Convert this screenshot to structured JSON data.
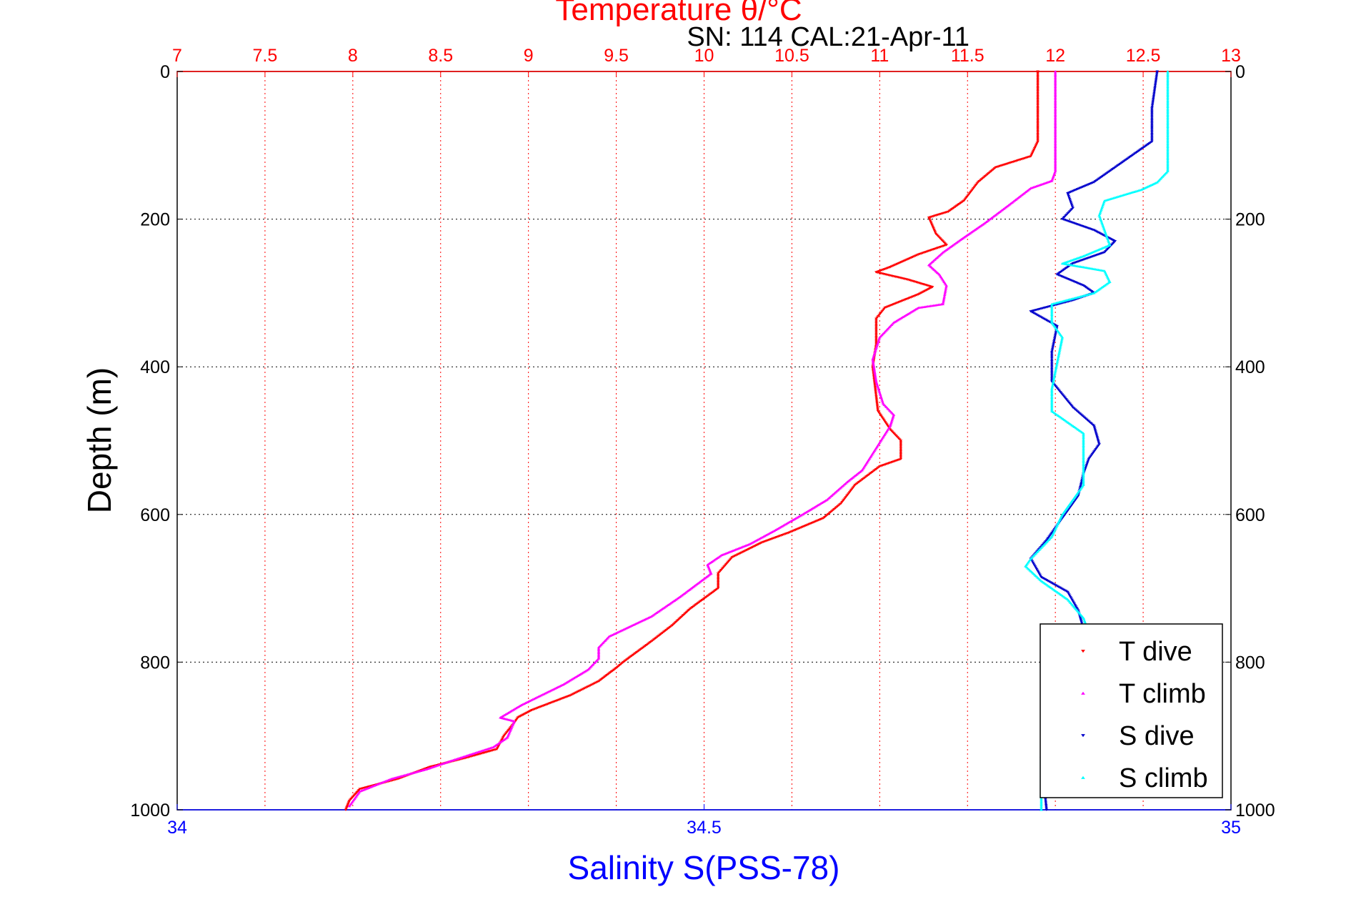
{
  "chart_data": {
    "type": "scatter",
    "title": "Temperature θ/°C",
    "subtitle": "SN: 114  CAL:21-Apr-11",
    "xlabel_top": "Temperature θ/°C",
    "xlabel_bottom": "Salinity S(PSS-78)",
    "ylabel": "Depth (m)",
    "temperature_axis": {
      "lim": [
        7,
        13
      ],
      "ticks": [
        "7",
        "7.5",
        "8",
        "8.5",
        "9",
        "9.5",
        "10",
        "10.5",
        "11",
        "11.5",
        "12",
        "12.5",
        "13"
      ]
    },
    "salinity_axis": {
      "lim": [
        34,
        35
      ],
      "ticks": [
        "34",
        "34.5",
        "35"
      ]
    },
    "depth_axis": {
      "lim": [
        0,
        1000
      ],
      "reversed": true,
      "ticks": [
        "0",
        "200",
        "400",
        "600",
        "800",
        "1000"
      ]
    },
    "grid": true,
    "legend_position": "bottom-right",
    "series": [
      {
        "name": "T dive",
        "axis": "temperature",
        "color": "#ff0000",
        "marker": "down-triangle",
        "points": [
          [
            11.9,
            0
          ],
          [
            11.9,
            50
          ],
          [
            11.9,
            95
          ],
          [
            11.86,
            115
          ],
          [
            11.66,
            130
          ],
          [
            11.56,
            150
          ],
          [
            11.48,
            175
          ],
          [
            11.39,
            190
          ],
          [
            11.28,
            198
          ],
          [
            11.32,
            220
          ],
          [
            11.38,
            235
          ],
          [
            11.22,
            248
          ],
          [
            11.06,
            265
          ],
          [
            10.98,
            272
          ],
          [
            11.16,
            282
          ],
          [
            11.3,
            292
          ],
          [
            11.22,
            302
          ],
          [
            11.03,
            320
          ],
          [
            10.98,
            335
          ],
          [
            10.98,
            370
          ],
          [
            10.96,
            400
          ],
          [
            10.98,
            440
          ],
          [
            10.99,
            460
          ],
          [
            11.06,
            485
          ],
          [
            11.12,
            500
          ],
          [
            11.12,
            525
          ],
          [
            11.0,
            535
          ],
          [
            10.86,
            560
          ],
          [
            10.78,
            585
          ],
          [
            10.68,
            605
          ],
          [
            10.48,
            625
          ],
          [
            10.33,
            638
          ],
          [
            10.16,
            658
          ],
          [
            10.08,
            680
          ],
          [
            10.08,
            700
          ],
          [
            9.92,
            728
          ],
          [
            9.82,
            750
          ],
          [
            9.7,
            772
          ],
          [
            9.54,
            800
          ],
          [
            9.5,
            808
          ],
          [
            9.4,
            826
          ],
          [
            9.24,
            845
          ],
          [
            9.02,
            865
          ],
          [
            8.94,
            875
          ],
          [
            8.92,
            882
          ],
          [
            8.86,
            900
          ],
          [
            8.82,
            918
          ],
          [
            8.64,
            930
          ],
          [
            8.44,
            942
          ],
          [
            8.26,
            958
          ],
          [
            8.04,
            972
          ],
          [
            7.98,
            988
          ],
          [
            7.96,
            1000
          ]
        ]
      },
      {
        "name": "T climb",
        "axis": "temperature",
        "color": "#ff00ff",
        "marker": "up-triangle",
        "points": [
          [
            12.0,
            0
          ],
          [
            12.0,
            50
          ],
          [
            12.0,
            100
          ],
          [
            12.0,
            135
          ],
          [
            11.98,
            148
          ],
          [
            11.86,
            158
          ],
          [
            11.74,
            180
          ],
          [
            11.6,
            205
          ],
          [
            11.46,
            228
          ],
          [
            11.36,
            245
          ],
          [
            11.28,
            262
          ],
          [
            11.34,
            275
          ],
          [
            11.38,
            290
          ],
          [
            11.36,
            315
          ],
          [
            11.22,
            320
          ],
          [
            11.08,
            340
          ],
          [
            11.0,
            360
          ],
          [
            10.96,
            390
          ],
          [
            10.98,
            420
          ],
          [
            11.02,
            450
          ],
          [
            11.08,
            465
          ],
          [
            11.06,
            480
          ],
          [
            10.98,
            510
          ],
          [
            10.9,
            540
          ],
          [
            10.82,
            555
          ],
          [
            10.7,
            580
          ],
          [
            10.56,
            600
          ],
          [
            10.4,
            622
          ],
          [
            10.26,
            640
          ],
          [
            10.1,
            655
          ],
          [
            10.02,
            668
          ],
          [
            10.04,
            680
          ],
          [
            9.86,
            712
          ],
          [
            9.7,
            738
          ],
          [
            9.46,
            765
          ],
          [
            9.4,
            780
          ],
          [
            9.4,
            795
          ],
          [
            9.34,
            810
          ],
          [
            9.2,
            830
          ],
          [
            8.96,
            858
          ],
          [
            8.84,
            875
          ],
          [
            8.92,
            880
          ],
          [
            8.88,
            902
          ],
          [
            8.8,
            915
          ],
          [
            8.58,
            932
          ],
          [
            8.42,
            945
          ],
          [
            8.22,
            958
          ],
          [
            8.04,
            975
          ],
          [
            7.98,
            995
          ]
        ]
      },
      {
        "name": "S dive",
        "axis": "salinity",
        "color": "#0000cc",
        "marker": "down-triangle",
        "points": [
          [
            34.93,
            0
          ],
          [
            34.925,
            50
          ],
          [
            34.925,
            95
          ],
          [
            34.91,
            110
          ],
          [
            34.89,
            130
          ],
          [
            34.87,
            150
          ],
          [
            34.845,
            165
          ],
          [
            34.85,
            185
          ],
          [
            34.84,
            200
          ],
          [
            34.87,
            215
          ],
          [
            34.89,
            230
          ],
          [
            34.88,
            245
          ],
          [
            34.85,
            260
          ],
          [
            34.835,
            275
          ],
          [
            34.86,
            290
          ],
          [
            34.87,
            300
          ],
          [
            34.85,
            310
          ],
          [
            34.81,
            325
          ],
          [
            34.835,
            345
          ],
          [
            34.83,
            380
          ],
          [
            34.83,
            420
          ],
          [
            34.85,
            455
          ],
          [
            34.87,
            480
          ],
          [
            34.875,
            505
          ],
          [
            34.865,
            525
          ],
          [
            34.86,
            545
          ],
          [
            34.855,
            575
          ],
          [
            34.84,
            605
          ],
          [
            34.825,
            635
          ],
          [
            34.81,
            660
          ],
          [
            34.82,
            685
          ],
          [
            34.845,
            705
          ],
          [
            34.855,
            730
          ],
          [
            34.86,
            755
          ],
          [
            34.85,
            800
          ],
          [
            34.83,
            870
          ],
          [
            34.82,
            930
          ],
          [
            34.825,
            1000
          ]
        ]
      },
      {
        "name": "S climb",
        "axis": "salinity",
        "color": "#00ffff",
        "marker": "up-triangle",
        "points": [
          [
            34.94,
            0
          ],
          [
            34.94,
            50
          ],
          [
            34.94,
            100
          ],
          [
            34.94,
            135
          ],
          [
            34.93,
            150
          ],
          [
            34.915,
            160
          ],
          [
            34.88,
            175
          ],
          [
            34.875,
            195
          ],
          [
            34.88,
            215
          ],
          [
            34.885,
            235
          ],
          [
            34.86,
            250
          ],
          [
            34.84,
            260
          ],
          [
            34.88,
            270
          ],
          [
            34.885,
            285
          ],
          [
            34.87,
            300
          ],
          [
            34.83,
            315
          ],
          [
            34.83,
            340
          ],
          [
            34.84,
            360
          ],
          [
            34.835,
            395
          ],
          [
            34.83,
            430
          ],
          [
            34.83,
            460
          ],
          [
            34.86,
            490
          ],
          [
            34.86,
            515
          ],
          [
            34.86,
            535
          ],
          [
            34.86,
            560
          ],
          [
            34.84,
            600
          ],
          [
            34.83,
            630
          ],
          [
            34.81,
            660
          ],
          [
            34.805,
            670
          ],
          [
            34.82,
            690
          ],
          [
            34.845,
            715
          ],
          [
            34.86,
            740
          ],
          [
            34.865,
            760
          ],
          [
            34.85,
            800
          ],
          [
            34.83,
            870
          ],
          [
            34.82,
            930
          ],
          [
            34.82,
            1000
          ]
        ]
      }
    ]
  }
}
